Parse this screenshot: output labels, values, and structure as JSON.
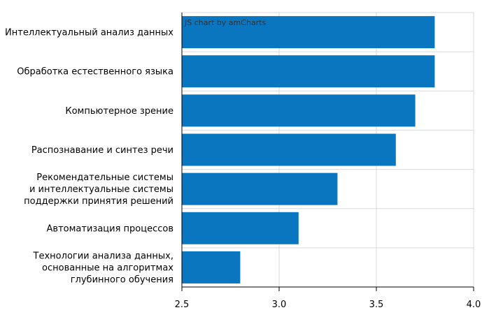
{
  "credit": "JS chart by amCharts",
  "colors": {
    "bar": "#0a76c0",
    "grid": "#d9d9d9",
    "axis": "#000000",
    "text": "#000000"
  },
  "chart_data": {
    "type": "bar",
    "orientation": "horizontal",
    "categories": [
      [
        "Интеллектуальный анализ данных"
      ],
      [
        "Обработка естественного языка"
      ],
      [
        "Компьютерное зрение"
      ],
      [
        "Распознавание и синтез речи"
      ],
      [
        "Рекомендательные системы",
        "и интеллектуальные системы",
        "поддержки принятия решений"
      ],
      [
        "Автоматизация процессов"
      ],
      [
        "Технологии анализа данных,",
        "основанные на алгоритмах",
        "глубинного обучения"
      ]
    ],
    "values": [
      3.8,
      3.8,
      3.7,
      3.6,
      3.3,
      3.1,
      2.8
    ],
    "xlim": [
      2.5,
      4.0
    ],
    "xticks": [
      "2.5",
      "3.0",
      "3.5",
      "4.0"
    ],
    "tick_values": [
      2.5,
      3.0,
      3.5,
      4.0
    ],
    "grid": true
  }
}
